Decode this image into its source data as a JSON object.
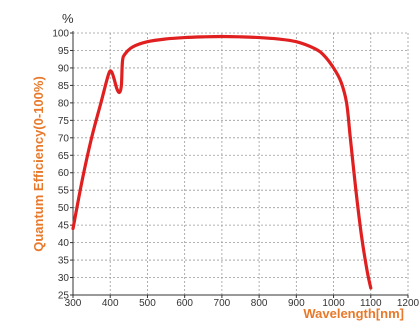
{
  "chart_data": {
    "type": "line",
    "title": "",
    "xlabel": "Wavelength[nm]",
    "ylabel": "Quantum Efficiency(0-100%)",
    "yunit": "%",
    "xlim": [
      300,
      1200
    ],
    "ylim": [
      25,
      100
    ],
    "x_ticks": [
      300,
      400,
      500,
      600,
      700,
      800,
      900,
      1000,
      1100,
      1200
    ],
    "y_ticks": [
      25,
      30,
      35,
      40,
      45,
      50,
      55,
      60,
      65,
      70,
      75,
      80,
      85,
      90,
      95,
      100
    ],
    "grid": true,
    "legend": "none",
    "colors": {
      "line": "#e02020",
      "axis_title": "#e8792a",
      "grid": "#9a9a9a",
      "text": "#333333"
    },
    "series": [
      {
        "x": [
          300,
          325,
          350,
          375,
          395,
          403,
          410,
          418,
          425,
          430,
          433,
          440,
          460,
          500,
          550,
          600,
          650,
          700,
          750,
          800,
          850,
          900,
          950,
          975,
          1000,
          1020,
          1035,
          1045,
          1060,
          1075,
          1090,
          1100
        ],
        "values": [
          44,
          58,
          70,
          80,
          88,
          89,
          87,
          84,
          83,
          85,
          92,
          94,
          96,
          97.5,
          98.3,
          98.7,
          98.9,
          99,
          98.9,
          98.7,
          98.3,
          97.5,
          95.5,
          93.5,
          90,
          86,
          80,
          70,
          55,
          42,
          32,
          27
        ]
      }
    ]
  }
}
